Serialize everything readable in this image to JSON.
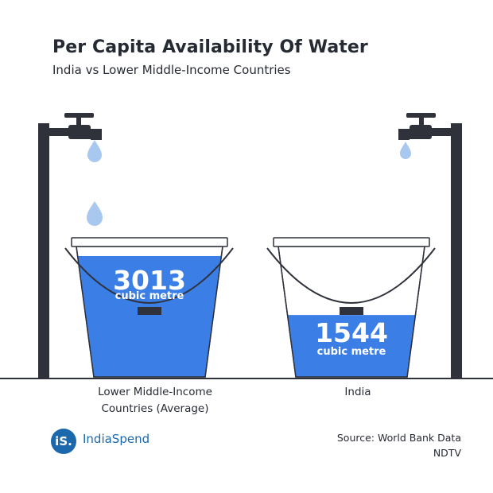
{
  "title": "Per Capita Availability Of Water",
  "subtitle": "India vs Lower Middle-Income Countries",
  "chart_data": {
    "type": "bar",
    "categories": [
      "Lower Middle-Income Countries (Average)",
      "India"
    ],
    "values": [
      3013,
      1544
    ],
    "unit": "cubic metre",
    "category_lines": [
      [
        "Lower Middle-Income",
        "Countries (Average)"
      ],
      [
        "India"
      ]
    ],
    "value_labels": [
      "3013",
      "1544"
    ]
  },
  "brand": {
    "logo_text": "iS.",
    "name": "IndiaSpend"
  },
  "source": {
    "line1": "Source: World Bank Data",
    "line2": "NDTV"
  },
  "colors": {
    "water": "#3b7fe6",
    "dark": "#2f323b",
    "drop": "#a9c8f0",
    "brand": "#1b69ac"
  }
}
